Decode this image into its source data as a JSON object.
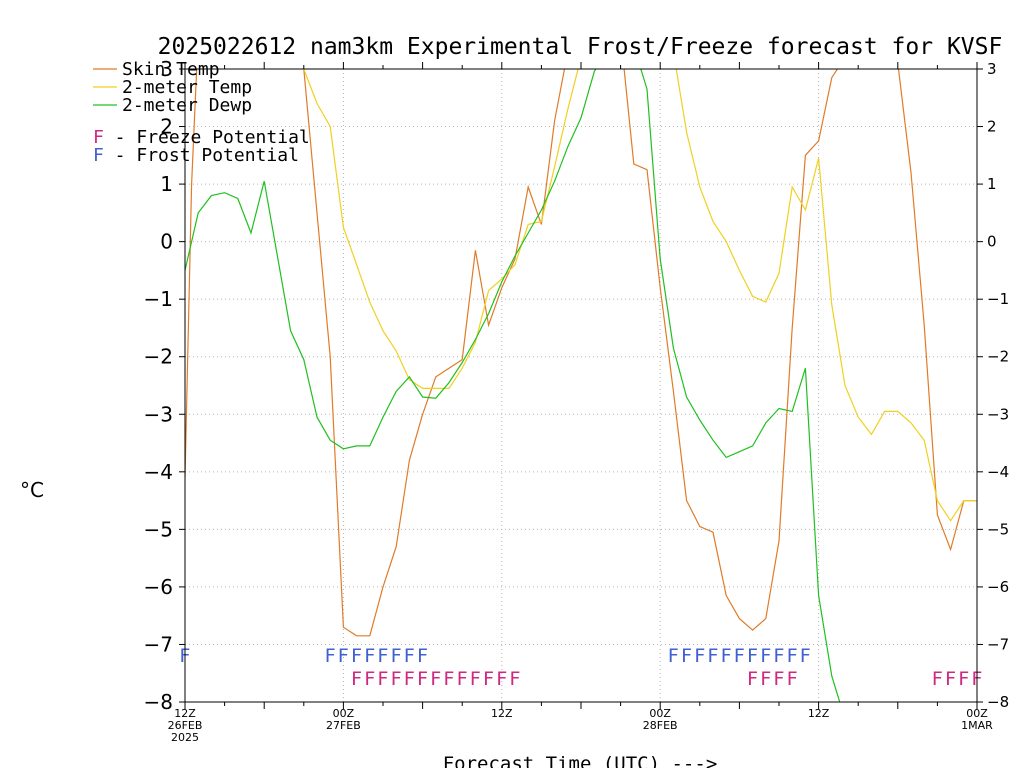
{
  "chart_data": {
    "type": "line",
    "title": "2025022612 nam3km Experimental Frost/Freeze forecast for KVSF",
    "xlabel": "Forecast Time (UTC) --->",
    "ylabel": "°C",
    "ylim": [
      -8,
      3
    ],
    "xlim_hours": [
      0,
      60
    ],
    "y_ticks": [
      -8,
      -7,
      -6,
      -5,
      -4,
      -3,
      -2,
      -1,
      0,
      1,
      2,
      3
    ],
    "grid": true,
    "legend_placement": "top-left",
    "x_ticks": [
      {
        "hour": 0,
        "lines": [
          "12Z",
          "26FEB",
          "2025"
        ]
      },
      {
        "hour": 12,
        "lines": [
          "00Z",
          "27FEB"
        ]
      },
      {
        "hour": 24,
        "lines": [
          "12Z"
        ]
      },
      {
        "hour": 36,
        "lines": [
          "00Z",
          "28FEB"
        ]
      },
      {
        "hour": 48,
        "lines": [
          "12Z"
        ]
      },
      {
        "hour": 60,
        "lines": [
          "00Z",
          "1MAR"
        ]
      }
    ],
    "legend": [
      {
        "label": "Skin Temp",
        "color": "#e07b28"
      },
      {
        "label": "2-meter Temp",
        "color": "#f0d020"
      },
      {
        "label": "2-meter Dewp",
        "color": "#20c020"
      }
    ],
    "legend_potential": [
      {
        "letter": "F",
        "text": " - Freeze Potential",
        "color": "#d02880"
      },
      {
        "letter": "F",
        "text": " - Frost Potential",
        "color": "#4060d0"
      }
    ],
    "series": [
      {
        "name": "Skin Temp",
        "color": "#e07b28",
        "x": [
          0,
          0.5,
          1,
          9,
          11,
          12,
          13,
          14,
          15,
          16,
          17,
          18,
          19,
          20,
          21,
          22,
          23,
          24,
          25,
          26,
          27,
          28,
          29,
          30,
          33,
          34,
          35,
          36,
          37,
          38,
          39,
          40,
          41,
          42,
          43,
          44,
          45,
          46,
          47,
          48,
          49,
          50,
          51,
          52,
          54,
          55,
          56,
          57,
          58,
          59,
          60
        ],
        "y": [
          -4.1,
          1.0,
          3.6,
          3.0,
          -2.0,
          -6.7,
          -6.85,
          -6.85,
          -6.0,
          -5.3,
          -3.8,
          -3.0,
          -2.35,
          -2.2,
          -2.05,
          -0.15,
          -1.45,
          -0.8,
          -0.3,
          0.95,
          0.3,
          2.1,
          3.3,
          3.6,
          3.6,
          1.35,
          1.25,
          -0.8,
          -2.6,
          -4.5,
          -4.95,
          -5.05,
          -6.15,
          -6.55,
          -6.75,
          -6.55,
          -5.2,
          -1.5,
          1.5,
          1.75,
          2.85,
          3.2,
          3.3,
          3.3,
          3.1,
          1.2,
          -1.45,
          -4.75,
          -5.35,
          -4.5,
          -4.5
        ]
      },
      {
        "name": "2-meter Temp",
        "color": "#f0d020",
        "x": [
          9,
          10,
          11,
          12,
          13,
          14,
          15,
          16,
          17,
          18,
          19,
          20,
          21,
          22,
          23,
          24,
          25,
          26,
          27,
          28,
          29,
          30,
          31,
          37,
          38,
          39,
          40,
          41,
          42,
          43,
          44,
          45,
          46,
          47,
          48,
          49,
          50,
          51,
          52,
          53,
          54,
          55,
          56,
          57,
          58,
          59,
          60
        ],
        "y": [
          3.0,
          2.4,
          2.0,
          0.25,
          -0.4,
          -1.05,
          -1.55,
          -1.9,
          -2.4,
          -2.55,
          -2.55,
          -2.55,
          -2.2,
          -1.75,
          -0.85,
          -0.65,
          -0.4,
          0.3,
          0.35,
          1.3,
          2.3,
          3.2,
          3.4,
          3.3,
          1.9,
          0.95,
          0.35,
          0.0,
          -0.5,
          -0.95,
          -1.05,
          -0.55,
          0.95,
          0.55,
          1.45,
          -1.1,
          -2.5,
          -3.05,
          -3.35,
          -2.95,
          -2.95,
          -3.15,
          -3.45,
          -4.5,
          -4.85,
          -4.5,
          -4.5
        ]
      },
      {
        "name": "2-meter Dewp",
        "color": "#20c020",
        "x": [
          0,
          0.5,
          1,
          2,
          3,
          4,
          5,
          6,
          7,
          8,
          9,
          10,
          11,
          12,
          13,
          14,
          15,
          16,
          17,
          18,
          19,
          20,
          21,
          22,
          23,
          24,
          25,
          26,
          27,
          28,
          29,
          30,
          31,
          32,
          33,
          34,
          35,
          36,
          37,
          38,
          39,
          40,
          41,
          42,
          43,
          44,
          45,
          46,
          47,
          48,
          49,
          50,
          50.5
        ],
        "y": [
          -0.5,
          0.0,
          0.5,
          0.8,
          0.85,
          0.75,
          0.15,
          1.05,
          -0.25,
          -1.55,
          -2.05,
          -3.05,
          -3.45,
          -3.6,
          -3.55,
          -3.55,
          -3.05,
          -2.6,
          -2.35,
          -2.7,
          -2.72,
          -2.45,
          -2.1,
          -1.7,
          -1.25,
          -0.7,
          -0.25,
          0.15,
          0.55,
          1.05,
          1.65,
          2.15,
          2.95,
          3.4,
          3.6,
          3.4,
          2.65,
          -0.3,
          -1.85,
          -2.7,
          -3.1,
          -3.45,
          -3.75,
          -3.65,
          -3.55,
          -3.15,
          -2.9,
          -2.95,
          -2.2,
          -6.15,
          -7.55,
          -8.3,
          -8.5
        ]
      }
    ],
    "potential_rows": [
      {
        "name": "Frost Potential",
        "y": -7.15,
        "color": "#4060d0",
        "hours": [
          0,
          11,
          12,
          13,
          14,
          15,
          16,
          17,
          18,
          37,
          38,
          39,
          40,
          41,
          42,
          43,
          44,
          45,
          46,
          47
        ]
      },
      {
        "name": "Freeze Potential",
        "y": -7.55,
        "color": "#d02880",
        "hours": [
          13,
          14,
          15,
          16,
          17,
          18,
          19,
          20,
          21,
          22,
          23,
          24,
          25,
          43,
          44,
          45,
          46,
          57,
          58,
          59,
          60
        ]
      }
    ]
  }
}
